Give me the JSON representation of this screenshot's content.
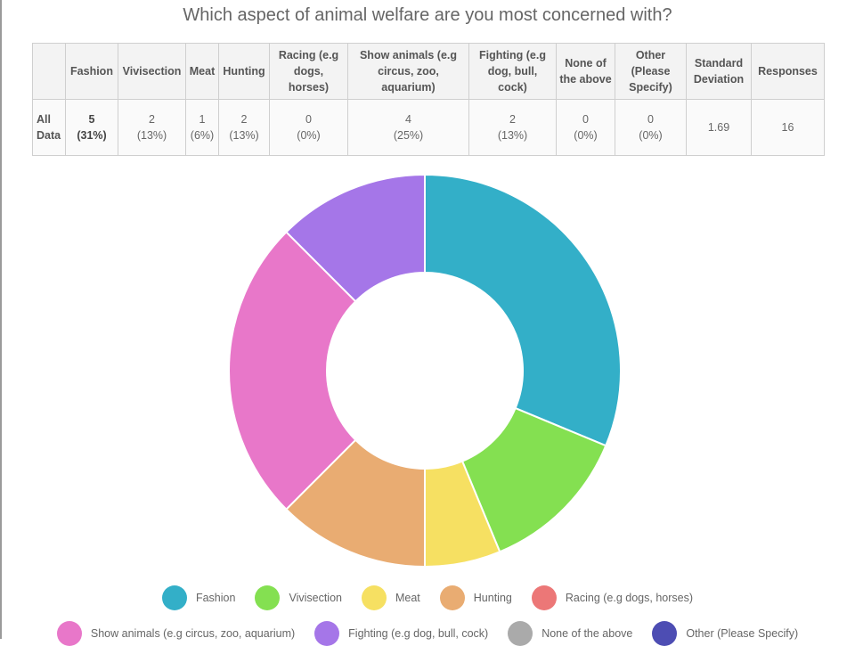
{
  "page": {
    "title": "Which aspect of animal welfare are you most concerned with?"
  },
  "table": {
    "headers": [
      "",
      "Fashion",
      "Vivisection",
      "Meat",
      "Hunting",
      "Racing (e.g dogs, horses)",
      "Show animals (e.g circus, zoo, aquarium)",
      "Fighting (e.g dog, bull, cock)",
      "None of the above",
      "Other (Please Specify)",
      "Standard Deviation",
      "Responses"
    ],
    "row": {
      "label": "All Data",
      "cells": [
        {
          "count": "5",
          "pct": "(31%)",
          "emph": true
        },
        {
          "count": "2",
          "pct": "(13%)"
        },
        {
          "count": "1",
          "pct": "(6%)"
        },
        {
          "count": "2",
          "pct": "(13%)"
        },
        {
          "count": "0",
          "pct": "(0%)"
        },
        {
          "count": "4",
          "pct": "(25%)"
        },
        {
          "count": "2",
          "pct": "(13%)"
        },
        {
          "count": "0",
          "pct": "(0%)"
        },
        {
          "count": "0",
          "pct": "(0%)"
        },
        {
          "count": "1.69",
          "pct": ""
        },
        {
          "count": "16",
          "pct": ""
        }
      ]
    }
  },
  "chart_data": {
    "type": "pie",
    "style": "donut",
    "categories": [
      "Fashion",
      "Vivisection",
      "Meat",
      "Hunting",
      "Racing (e.g dogs, horses)",
      "Show animals (e.g circus, zoo, aquarium)",
      "Fighting (e.g dog, bull, cock)",
      "None of the above",
      "Other (Please Specify)"
    ],
    "values": [
      5,
      2,
      1,
      2,
      0,
      4,
      2,
      0,
      0
    ],
    "colors": [
      "#33afc8",
      "#84e051",
      "#f6e062",
      "#e9ac72",
      "#ec7777",
      "#e877c9",
      "#a576e8",
      "#aaaaaa",
      "#4d4db3"
    ],
    "legend_placement": "bottom",
    "legend_rows": [
      [
        0,
        1,
        2,
        3,
        4
      ],
      [
        5,
        6,
        7,
        8
      ]
    ]
  }
}
